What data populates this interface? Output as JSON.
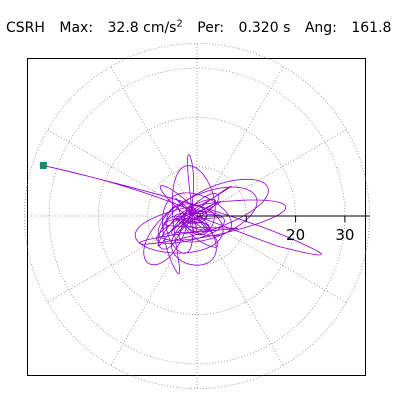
{
  "header": {
    "station": "CSRH",
    "max_label": "Max:",
    "max_value": "32.8 cm/s",
    "max_exp": "2",
    "per_label": "Per:",
    "per_value": "0.320 s",
    "ang_label": "Ang:",
    "ang_value": "161.8"
  },
  "chart_data": {
    "type": "polar-orbit",
    "radial_ticks": [
      10,
      20,
      30
    ],
    "radial_tick_labels": [
      "20",
      "30"
    ],
    "rmax": 35,
    "radial_spokes_deg": [
      0,
      30,
      60,
      90,
      120,
      150,
      180,
      210,
      240,
      270,
      300,
      330
    ],
    "grid": true,
    "series_color": "#9400d3",
    "marker_color": "#1a8a6a",
    "max_point": {
      "r": 32.8,
      "theta_deg": 161.8
    }
  }
}
